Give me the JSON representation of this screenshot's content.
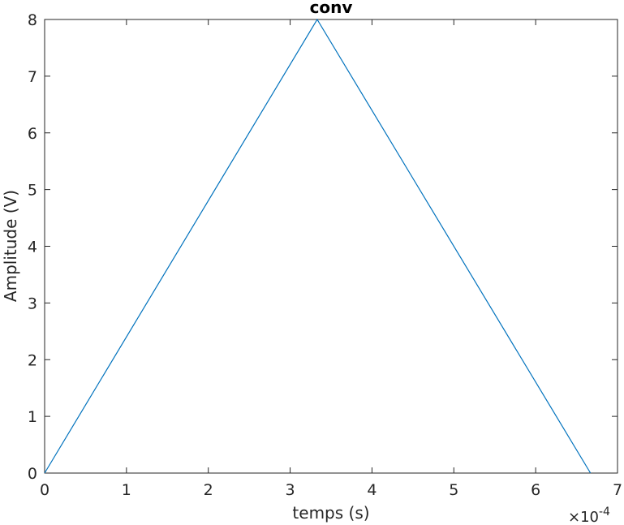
{
  "chart_data": {
    "type": "line",
    "title": "conv",
    "xlabel": "temps (s)",
    "ylabel": "Amplitude (V)",
    "x_multiplier_base": "×10",
    "x_multiplier_exp": "-4",
    "xlim": [
      0,
      7
    ],
    "ylim": [
      0,
      8
    ],
    "xticks": [
      0,
      1,
      2,
      3,
      4,
      5,
      6,
      7
    ],
    "yticks": [
      0,
      1,
      2,
      3,
      4,
      5,
      6,
      7,
      8
    ],
    "xtick_labels": [
      "0",
      "1",
      "2",
      "3",
      "4",
      "5",
      "6",
      "7"
    ],
    "ytick_labels": [
      "0",
      "1",
      "2",
      "3",
      "4",
      "5",
      "6",
      "7",
      "8"
    ],
    "grid": false,
    "series": [
      {
        "color": "#0072BD",
        "x": [
          0,
          3.33,
          6.67
        ],
        "y": [
          0,
          8,
          0
        ]
      }
    ]
  }
}
